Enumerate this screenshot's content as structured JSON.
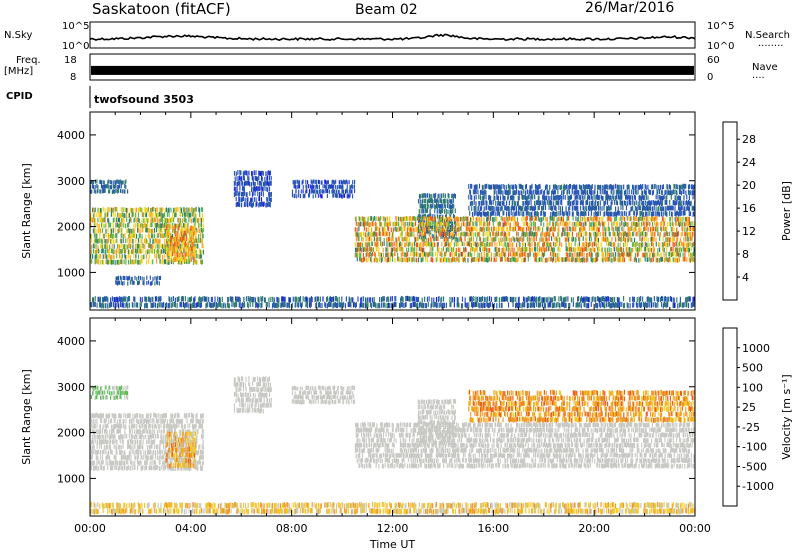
{
  "header": {
    "title": "Saskatoon (fitACF)",
    "beam": "Beam 02",
    "date": "26/Mar/2016"
  },
  "status_panels": {
    "nsky_label": "N.Sky",
    "nsearch_label": "N.Search",
    "nsearch_legend": "........",
    "noise_ticks": [
      "10^5",
      "10^0"
    ],
    "freq_label": "Freq.",
    "freq_unit": "[MHz]",
    "freq_ticks": [
      "18",
      "8"
    ],
    "nave_label": "Nave",
    "nave_legend": "....",
    "nave_ticks": [
      "60",
      "0"
    ],
    "cpid_label": "CPID",
    "cpid_value": "twofsound 3503",
    "freq_level": 0.35,
    "nave_level": 0.2
  },
  "chart_data": [
    {
      "type": "heatmap",
      "name": "power",
      "ylabel": "Slant Range [km]",
      "xlabel": "Time UT",
      "x_ticks": [
        "00:00",
        "04:00",
        "08:00",
        "12:00",
        "16:00",
        "20:00",
        "00:00"
      ],
      "xlim_hours": [
        0,
        24
      ],
      "y_ticks": [
        1000,
        2000,
        3000,
        4000
      ],
      "ylim": [
        180,
        4500
      ],
      "colorbar": {
        "label": "Power [dB]",
        "ticks": [
          4,
          8,
          12,
          16,
          20,
          24,
          28
        ],
        "range": [
          0,
          31
        ],
        "colors": [
          "#1e1ee0",
          "#2856b4",
          "#2f7d6e",
          "#58b058",
          "#f2d21e",
          "#f5a02c",
          "#ee5a1a",
          "#dc1414"
        ]
      },
      "bands": [
        {
          "h0": 0.0,
          "h1": 4.5,
          "r0": 1150,
          "r1": 2400,
          "v0": 10,
          "v1": 22
        },
        {
          "h0": 3.0,
          "h1": 4.2,
          "r0": 1200,
          "r1": 2000,
          "v0": 16,
          "v1": 27
        },
        {
          "h0": 0.0,
          "h1": 1.5,
          "r0": 2700,
          "r1": 3000,
          "v0": 5,
          "v1": 10
        },
        {
          "h0": 1.0,
          "h1": 2.8,
          "r0": 700,
          "r1": 900,
          "v0": 4,
          "v1": 9
        },
        {
          "h0": 5.7,
          "h1": 7.2,
          "r0": 2400,
          "r1": 3200,
          "v0": 3,
          "v1": 8
        },
        {
          "h0": 8.0,
          "h1": 10.5,
          "r0": 2600,
          "r1": 3000,
          "v0": 3,
          "v1": 8
        },
        {
          "h0": 13.0,
          "h1": 14.5,
          "r0": 1700,
          "r1": 2700,
          "v0": 5,
          "v1": 12
        },
        {
          "h0": 10.5,
          "h1": 24.0,
          "r0": 1200,
          "r1": 2200,
          "v0": 10,
          "v1": 28
        },
        {
          "h0": 15.0,
          "h1": 24.0,
          "r0": 2200,
          "r1": 2900,
          "v0": 4,
          "v1": 9
        },
        {
          "h0": 0.0,
          "h1": 24.0,
          "r0": 200,
          "r1": 450,
          "v0": 3,
          "v1": 12
        }
      ]
    },
    {
      "type": "heatmap",
      "name": "velocity",
      "ylabel": "Slant Range [km]",
      "xlabel": "Time UT",
      "x_ticks": [
        "00:00",
        "04:00",
        "08:00",
        "12:00",
        "16:00",
        "20:00",
        "00:00"
      ],
      "xlim_hours": [
        0,
        24
      ],
      "y_ticks": [
        1000,
        2000,
        3000,
        4000
      ],
      "ylim": [
        180,
        4500
      ],
      "colorbar": {
        "label": "Velocity [m s⁻¹]",
        "ticks": [
          "1000",
          "500",
          "100",
          "25",
          "-25",
          "-100",
          "-500",
          "-1000"
        ],
        "colors": [
          "#1e3cc8",
          "#2870b4",
          "#2c8a62",
          "#58c050",
          "#c8c8c4",
          "#f2c828",
          "#f09a28",
          "#ec5e1a",
          "#dc1414"
        ]
      },
      "bands": [
        {
          "h0": 0.0,
          "h1": 4.5,
          "r0": 1150,
          "r1": 2400,
          "v0": 4,
          "v1": 4
        },
        {
          "h0": 3.0,
          "h1": 4.2,
          "r0": 1200,
          "r1": 2000,
          "v0": 4,
          "v1": 7
        },
        {
          "h0": 0.0,
          "h1": 1.5,
          "r0": 2700,
          "r1": 3000,
          "v0": 3,
          "v1": 4
        },
        {
          "h0": 5.7,
          "h1": 7.2,
          "r0": 2400,
          "r1": 3200,
          "v0": 4,
          "v1": 4
        },
        {
          "h0": 8.0,
          "h1": 10.5,
          "r0": 2600,
          "r1": 3000,
          "v0": 4,
          "v1": 4
        },
        {
          "h0": 13.0,
          "h1": 14.5,
          "r0": 1700,
          "r1": 2700,
          "v0": 4,
          "v1": 4
        },
        {
          "h0": 10.5,
          "h1": 24.0,
          "r0": 1200,
          "r1": 2200,
          "v0": 4,
          "v1": 4
        },
        {
          "h0": 15.0,
          "h1": 24.0,
          "r0": 2200,
          "r1": 2900,
          "v0": 5,
          "v1": 7
        },
        {
          "h0": 0.0,
          "h1": 24.0,
          "r0": 200,
          "r1": 450,
          "v0": 4,
          "v1": 6
        }
      ]
    }
  ]
}
